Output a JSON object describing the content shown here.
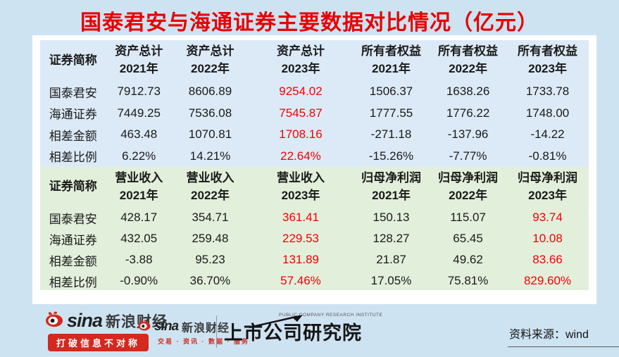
{
  "title": "国泰君安与海通证券主要数据对比情况（亿元）",
  "colors": {
    "title_red": "#e60000",
    "highlight_red": "#f40000",
    "page_blue": "#cee3f2",
    "section_blue": "#dceaf7",
    "section_green": "#e2efdb",
    "badge_red": "#d5281e"
  },
  "chart_data": {
    "type": "table",
    "title": "国泰君安与海通证券主要数据对比情况（亿元）",
    "unit": "亿元",
    "source": "wind",
    "sections": [
      {
        "theme": "blue",
        "corner_label": "证券简称",
        "columns": [
          {
            "metric": "资产总计",
            "year": "2021年"
          },
          {
            "metric": "资产总计",
            "year": "2022年"
          },
          {
            "metric": "资产总计",
            "year": "2023年"
          },
          {
            "metric": "所有者权益",
            "year": "2021年"
          },
          {
            "metric": "所有者权益",
            "year": "2022年"
          },
          {
            "metric": "所有者权益",
            "year": "2023年"
          }
        ],
        "red_columns": [
          2
        ],
        "rows": [
          {
            "label": "国泰君安",
            "values": [
              "7912.73",
              "8606.89",
              "9254.02",
              "1506.37",
              "1638.26",
              "1733.78"
            ]
          },
          {
            "label": "海通证券",
            "values": [
              "7449.25",
              "7536.08",
              "7545.87",
              "1777.55",
              "1776.22",
              "1748.00"
            ]
          },
          {
            "label": "相差金额",
            "values": [
              "463.48",
              "1070.81",
              "1708.16",
              "-271.18",
              "-137.96",
              "-14.22"
            ]
          },
          {
            "label": "相差比例",
            "values": [
              "6.22%",
              "14.21%",
              "22.64%",
              "-15.26%",
              "-7.77%",
              "-0.81%"
            ]
          }
        ]
      },
      {
        "theme": "green",
        "corner_label": "证券简称",
        "columns": [
          {
            "metric": "营业收入",
            "year": "2021年"
          },
          {
            "metric": "营业收入",
            "year": "2022年"
          },
          {
            "metric": "营业收入",
            "year": "2023年"
          },
          {
            "metric": "归母净利润",
            "year": "2021年"
          },
          {
            "metric": "归母净利润",
            "year": "2022年"
          },
          {
            "metric": "归母净利润",
            "year": "2023年"
          }
        ],
        "red_columns": [
          2,
          5
        ],
        "rows": [
          {
            "label": "国泰君安",
            "values": [
              "428.17",
              "354.71",
              "361.41",
              "150.13",
              "115.07",
              "93.74"
            ]
          },
          {
            "label": "海通证券",
            "values": [
              "432.05",
              "259.48",
              "229.53",
              "128.27",
              "65.45",
              "10.08"
            ]
          },
          {
            "label": "相差金额",
            "values": [
              "-3.88",
              "95.23",
              "131.89",
              "21.87",
              "49.62",
              "83.66"
            ]
          },
          {
            "label": "相差比例",
            "values": [
              "-0.90%",
              "36.70%",
              "57.46%",
              "17.05%",
              "75.81%",
              "829.60%"
            ]
          }
        ]
      }
    ]
  },
  "footer": {
    "sina_primary": {
      "brand": "sina",
      "name": "新浪财经",
      "slogan": "打破信息不对称"
    },
    "sina_secondary": {
      "brand": "sina",
      "name": "新浪财经",
      "tagline": "交易 · 资讯 · 数据 · 服务"
    },
    "institute": {
      "name_en": "PUBLIC COMPANY RESEARCH INSTITUTE",
      "name_cn": "上市公司研究院"
    },
    "source": "资料来源：wind"
  }
}
